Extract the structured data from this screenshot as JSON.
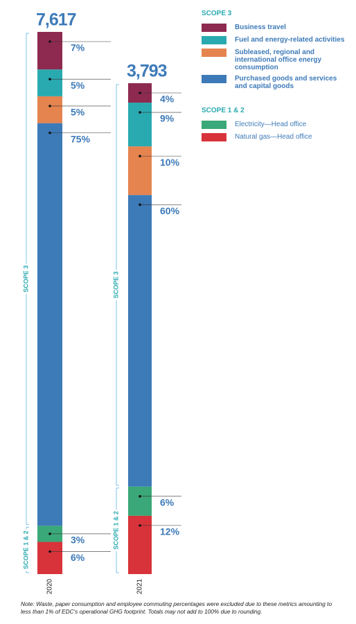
{
  "chart_data": {
    "type": "stacked_bar",
    "categories": [
      "2020",
      "2021"
    ],
    "totals": [
      7617,
      3793
    ],
    "total_labels": [
      "7,617",
      "3,793"
    ],
    "scopes": [
      {
        "name": "SCOPE 3",
        "series": [
          {
            "name": "Business travel",
            "color": "#8e2a4f",
            "values": [
              7,
              4
            ],
            "value_labels": [
              "7%",
              "4%"
            ]
          },
          {
            "name": "Fuel and energy-related activities",
            "color": "#29aab0",
            "values": [
              5,
              9
            ],
            "value_labels": [
              "5%",
              "9%"
            ]
          },
          {
            "name": "Subleased, regional and international office energy consumption",
            "color": "#e5844f",
            "values": [
              5,
              10
            ],
            "value_labels": [
              "5%",
              "10%"
            ]
          },
          {
            "name": "Purchased goods and services and capital goods",
            "color": "#3d7ab8",
            "values": [
              75,
              60
            ],
            "value_labels": [
              "75%",
              "60%"
            ]
          }
        ]
      },
      {
        "name": "SCOPE 1 & 2",
        "series": [
          {
            "name": "Electricity—Head office",
            "color": "#3aa878",
            "values": [
              3,
              6
            ],
            "value_labels": [
              "3%",
              "6%"
            ]
          },
          {
            "name": "Natural gas—Head office",
            "color": "#d8333a",
            "values": [
              6,
              12
            ],
            "value_labels": [
              "6%",
              "12%"
            ]
          }
        ]
      }
    ],
    "note": "Note: Waste, paper consumption and employee commuting percentages were excluded due to these metrics amounting to less than 1% of EDC's operational GHG footprint. Totals may not add to 100% due to rounding."
  }
}
